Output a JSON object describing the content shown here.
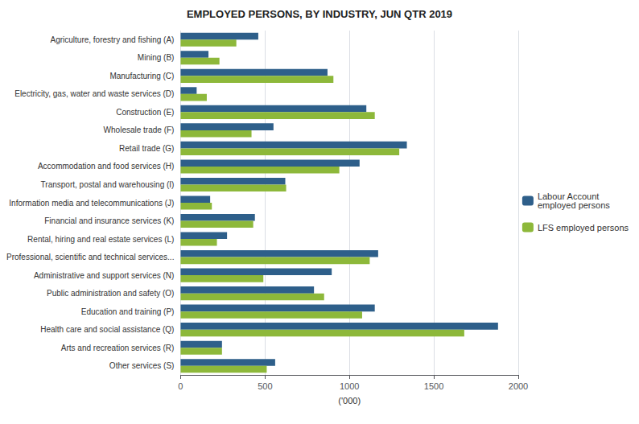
{
  "chart_data": {
    "type": "bar",
    "orientation": "horizontal",
    "title": "EMPLOYED PERSONS, BY INDUSTRY, JUN QTR 2019",
    "xlabel": "('000)",
    "categories": [
      "Agriculture, forestry and fishing (A)",
      "Mining (B)",
      "Manufacturing (C)",
      "Electricity, gas, water and waste services (D)",
      "Construction (E)",
      "Wholesale trade (F)",
      "Retail trade (G)",
      "Accommodation and food services (H)",
      "Transport, postal and warehousing (I)",
      "Information media and telecommunications (J)",
      "Financial and insurance services (K)",
      "Rental, hiring and real estate services (L)",
      "Professional, scientific and technical services...",
      "Administrative and support services (N)",
      "Public administration and safety (O)",
      "Education and training (P)",
      "Health care and social assistance (Q)",
      "Arts and recreation services (R)",
      "Other services (S)"
    ],
    "series": [
      {
        "name": "Labour Account\nemployed persons",
        "color": "#2E5F8A",
        "values": [
          460,
          165,
          870,
          95,
          1100,
          550,
          1340,
          1060,
          620,
          175,
          440,
          275,
          1170,
          895,
          790,
          1150,
          1880,
          245,
          560
        ]
      },
      {
        "name": "LFS employed persons",
        "color": "#8DB83A",
        "values": [
          330,
          230,
          905,
          155,
          1150,
          420,
          1295,
          940,
          625,
          185,
          430,
          215,
          1120,
          490,
          850,
          1075,
          1680,
          245,
          510
        ]
      }
    ],
    "xlim": [
      0,
      2000
    ],
    "xticks": [
      0,
      500,
      1000,
      1500,
      2000
    ],
    "grid": true,
    "legend": "right"
  }
}
